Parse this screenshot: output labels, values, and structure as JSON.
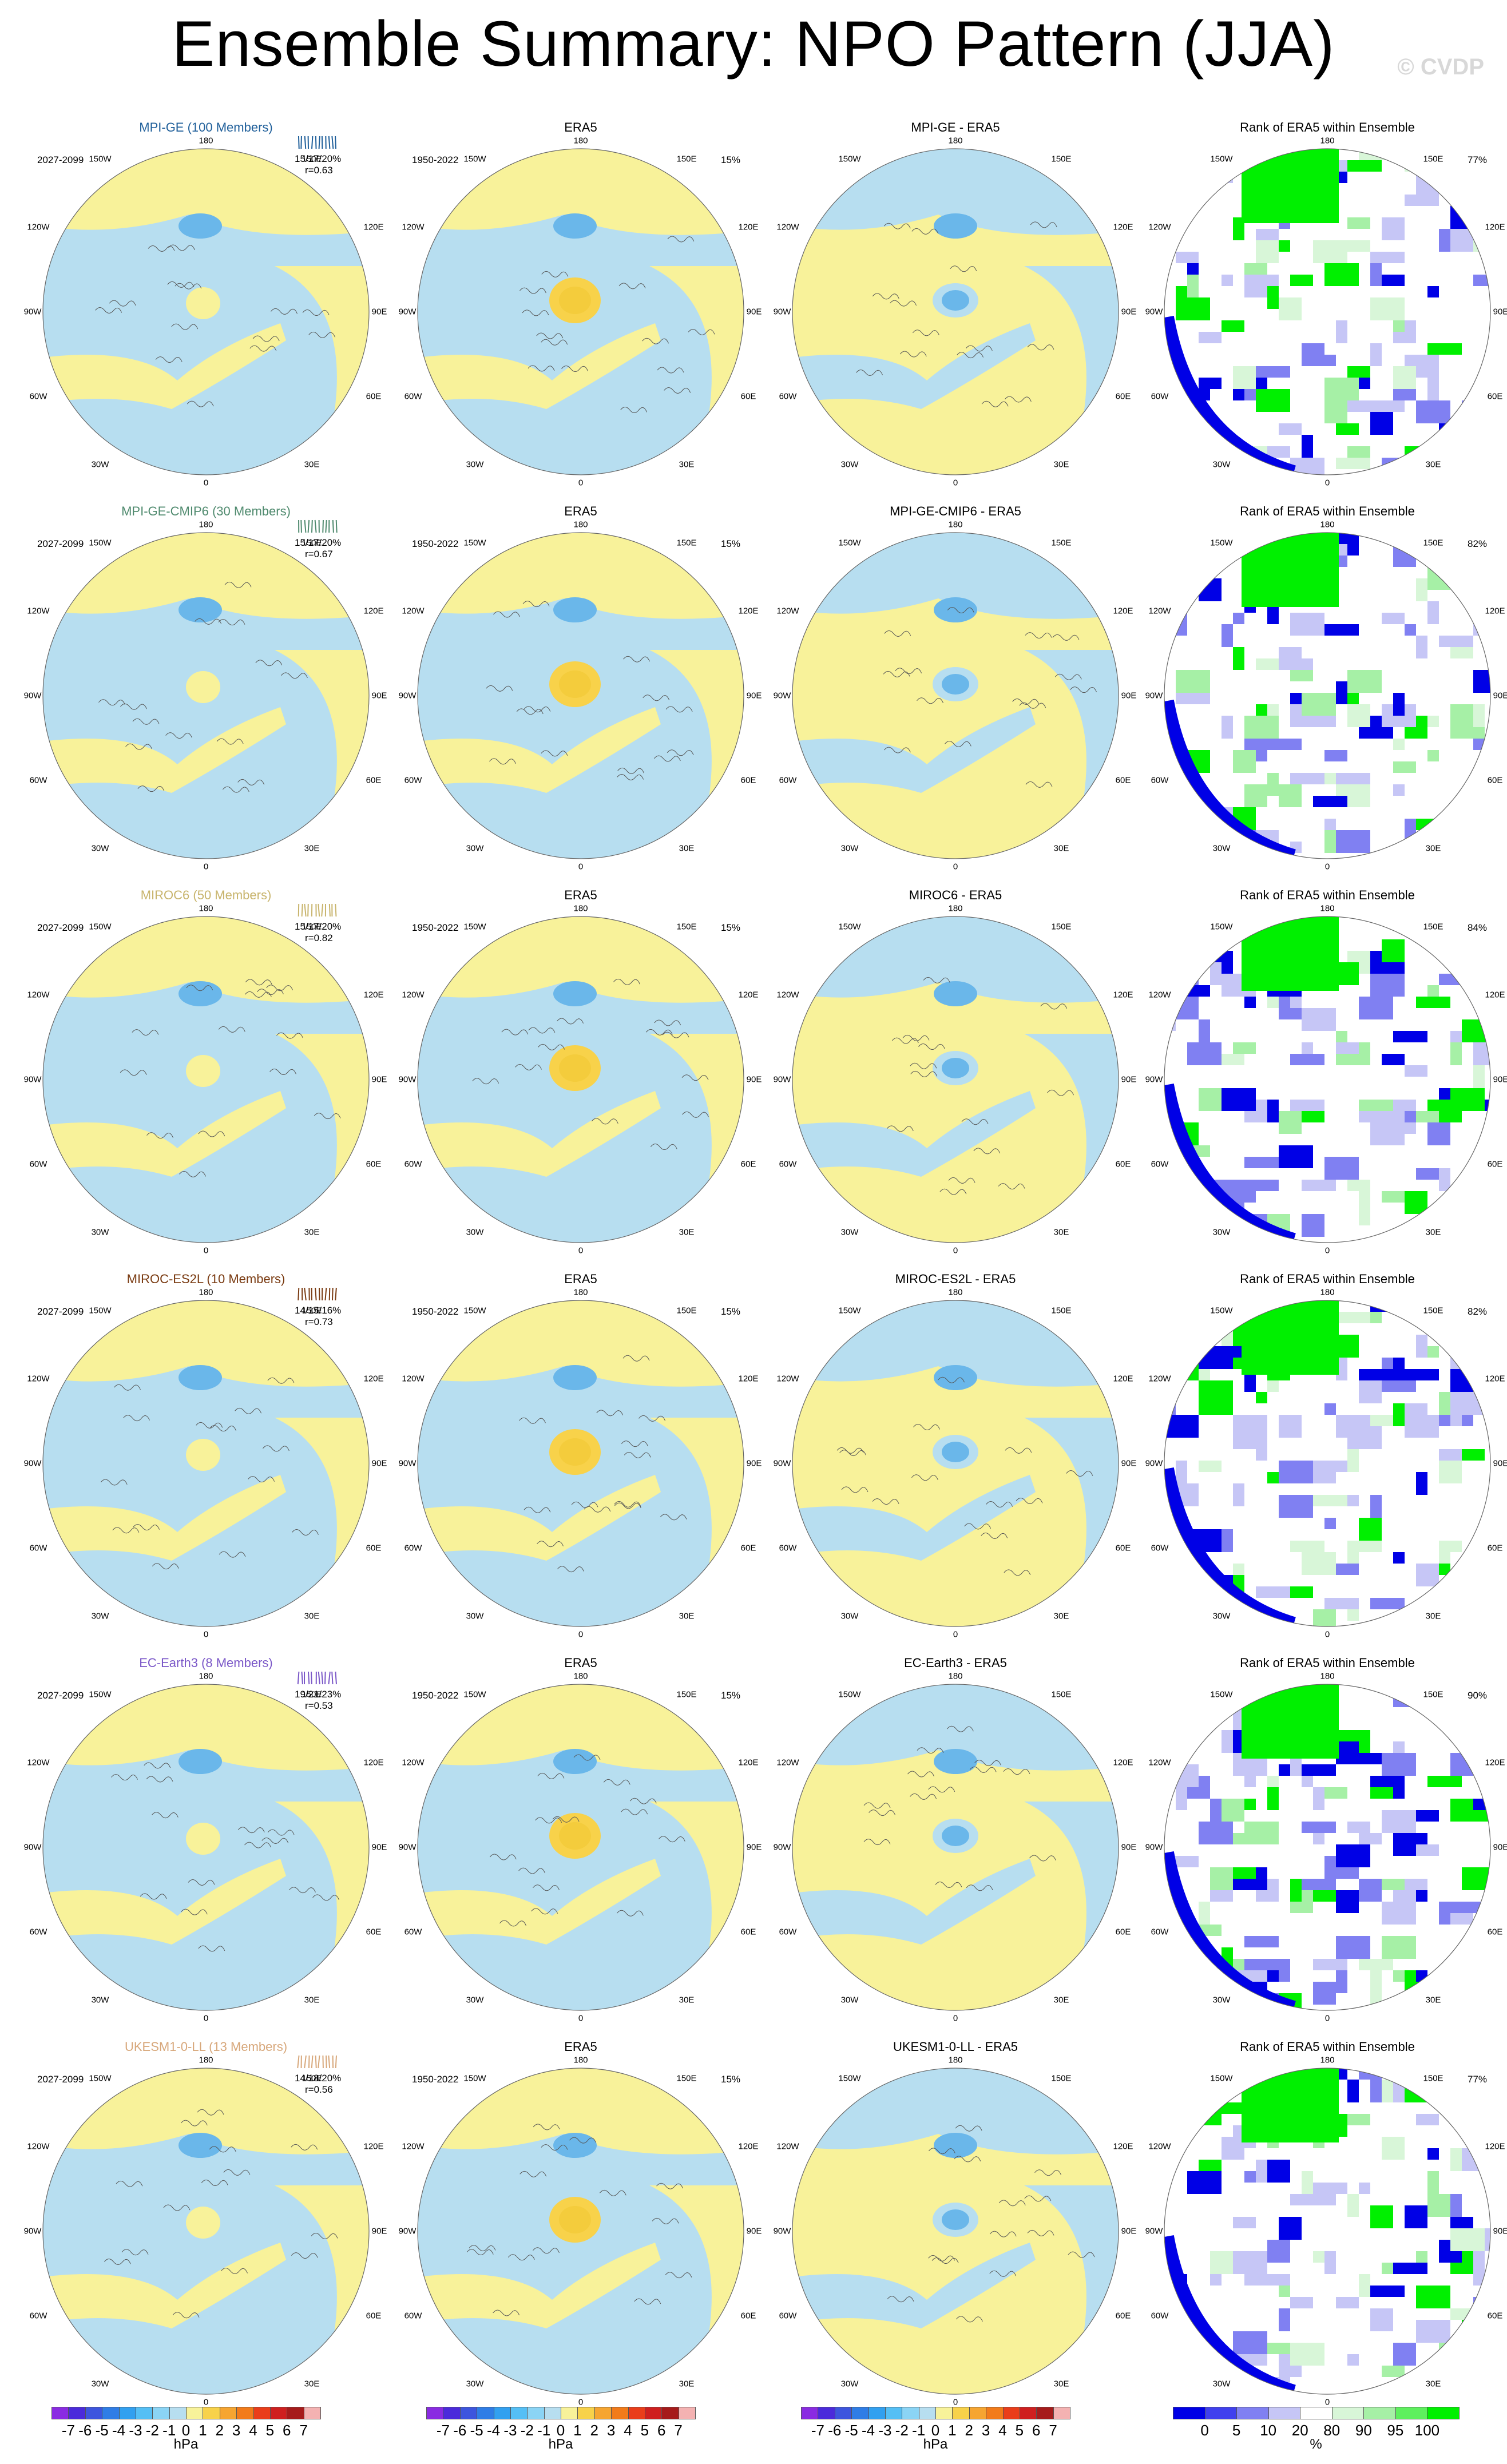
{
  "title": "Ensemble Summary: NPO Pattern (JJA)",
  "watermark": "© CVDP",
  "colors": {
    "neg_fill": "#b7def0",
    "pos_fill": "#f8f29a",
    "neg_core": "#6ab7ea",
    "pos_core": "#f4cc3c",
    "land_line": "#555555",
    "rank_low": "#0000e6",
    "rank_high": "#00f000"
  },
  "lat_lon_labels": {
    "top": "180",
    "bottom": "0",
    "left": "90W",
    "right": "90E",
    "ul1": "150W",
    "ul2": "120W",
    "ur1": "150E",
    "ur2": "120E",
    "ll1": "60W",
    "ll2": "30W",
    "lr1": "60E",
    "lr2": "30E"
  },
  "rows": [
    {
      "model": "MPI-GE (100 Members)",
      "model_color": "#1f5f9a",
      "model_period": "2027-2099",
      "obs_period": "1950-2022",
      "stats": "15/17/20%",
      "corr": "r=0.63",
      "era5_pct": "15%",
      "rank_pct": "77%",
      "diff_title": "MPI-GE - ERA5"
    },
    {
      "model": "MPI-GE-CMIP6 (30 Members)",
      "model_color": "#4f8a6e",
      "model_period": "2027-2099",
      "obs_period": "1950-2022",
      "stats": "15/17/20%",
      "corr": "r=0.67",
      "era5_pct": "15%",
      "rank_pct": "82%",
      "diff_title": "MPI-GE-CMIP6 - ERA5"
    },
    {
      "model": "MIROC6 (50 Members)",
      "model_color": "#c8b46c",
      "model_period": "2027-2099",
      "obs_period": "1950-2022",
      "stats": "15/17/20%",
      "corr": "r=0.82",
      "era5_pct": "15%",
      "rank_pct": "84%",
      "diff_title": "MIROC6 - ERA5"
    },
    {
      "model": "MIROC-ES2L (10 Members)",
      "model_color": "#7a3b12",
      "model_period": "2027-2099",
      "obs_period": "1950-2022",
      "stats": "14/15/16%",
      "corr": "r=0.73",
      "era5_pct": "15%",
      "rank_pct": "82%",
      "diff_title": "MIROC-ES2L - ERA5"
    },
    {
      "model": "EC-Earth3 (8 Members)",
      "model_color": "#7b58c8",
      "model_period": "2027-2099",
      "obs_period": "1950-2022",
      "stats": "19/21/23%",
      "corr": "r=0.53",
      "era5_pct": "15%",
      "rank_pct": "90%",
      "diff_title": "EC-Earth3 - ERA5"
    },
    {
      "model": "UKESM1-0-LL (13 Members)",
      "model_color": "#d7a77a",
      "model_period": "2027-2099",
      "obs_period": "1950-2022",
      "stats": "14/18/20%",
      "corr": "r=0.56",
      "era5_pct": "15%",
      "rank_pct": "77%",
      "diff_title": "UKESM1-0-LL - ERA5"
    }
  ],
  "obs_title": "ERA5",
  "rank_title": "Rank of ERA5 within Ensemble",
  "hpa_colorbar": {
    "unit": "hPa",
    "tick_labels": [
      "-7",
      "-6",
      "-5",
      "-4",
      "-3",
      "-2",
      "-1",
      "0",
      "1",
      "2",
      "3",
      "4",
      "5",
      "6",
      "7"
    ],
    "colors": [
      "#8a2be2",
      "#4b2adb",
      "#3d55de",
      "#2f7de6",
      "#32a0f0",
      "#55bff5",
      "#8bd4f5",
      "#b7def0",
      "#f8f29a",
      "#f8d24a",
      "#f6a531",
      "#f27b1a",
      "#ea3d1a",
      "#cf1f1f",
      "#a61b1b",
      "#f4b2b2"
    ]
  },
  "rank_colorbar": {
    "unit": "%",
    "tick_labels": [
      "0",
      "5",
      "10",
      "20",
      "80",
      "90",
      "95",
      "100"
    ],
    "colors": [
      "#0000e6",
      "#4040ee",
      "#8080f2",
      "#c6c6f6",
      "#ffffff",
      "#d8f6d8",
      "#a6f0a6",
      "#5ef05e",
      "#00f000"
    ]
  },
  "chart_data": {
    "type": "heatmap",
    "description_fields": "Polar-stereographic maps of NPO sea-level-pressure pattern; 6 models x 4 columns",
    "columns": [
      "model pattern",
      "ERA5",
      "model - ERA5",
      "Rank of ERA5 within Ensemble"
    ],
    "projection": "north-polar-stereographic",
    "contour_unit": "hPa",
    "contour_levels": [
      -7,
      -6,
      -5,
      -4,
      -3,
      -2,
      -1,
      0,
      1,
      2,
      3,
      4,
      5,
      6,
      7
    ],
    "rank_levels_pct": [
      0,
      5,
      10,
      20,
      80,
      90,
      95,
      100
    ]
  }
}
